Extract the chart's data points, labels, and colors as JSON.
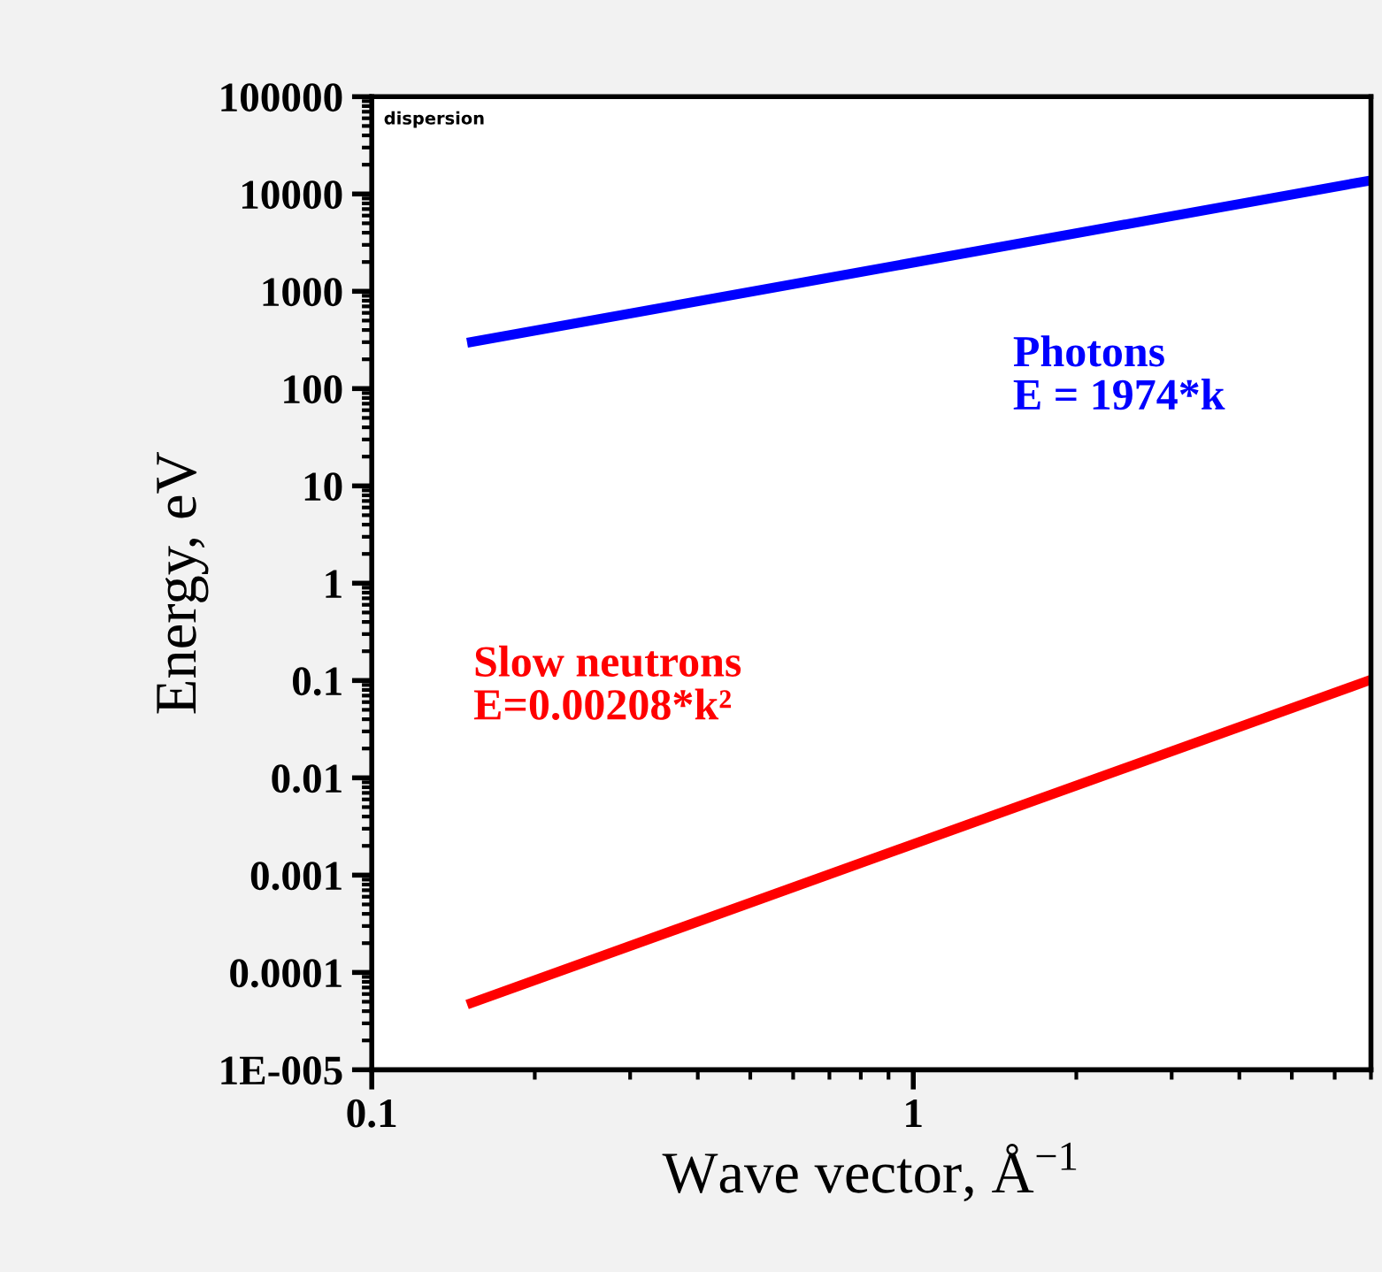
{
  "chart_data": {
    "type": "line",
    "xlabel": "Wave vector, Å$^{−1}$",
    "ylabel": "Energy, eV",
    "log": "xy",
    "xlim": [
      0.1,
      7
    ],
    "ylim": [
      1e-05,
      100000
    ],
    "xticks": [
      0.1,
      1
    ],
    "yticks": [
      {
        "value": 1e-05,
        "label": "1E-005"
      },
      0.0001,
      0.001,
      0.01,
      0.1,
      1,
      10,
      100,
      1000,
      10000,
      100000
    ],
    "annotations": [
      "dispersion"
    ],
    "x": [
      0.15,
      7
    ],
    "series": [
      {
        "name": "Photons\nE = 1974*k",
        "color": "#0000ff",
        "values": [
          296,
          13818
        ]
      },
      {
        "name": "Slow neutrons\nE=0.00208*k²",
        "color": "#ff0000",
        "values": [
          4.68e-05,
          0.102
        ]
      }
    ]
  }
}
